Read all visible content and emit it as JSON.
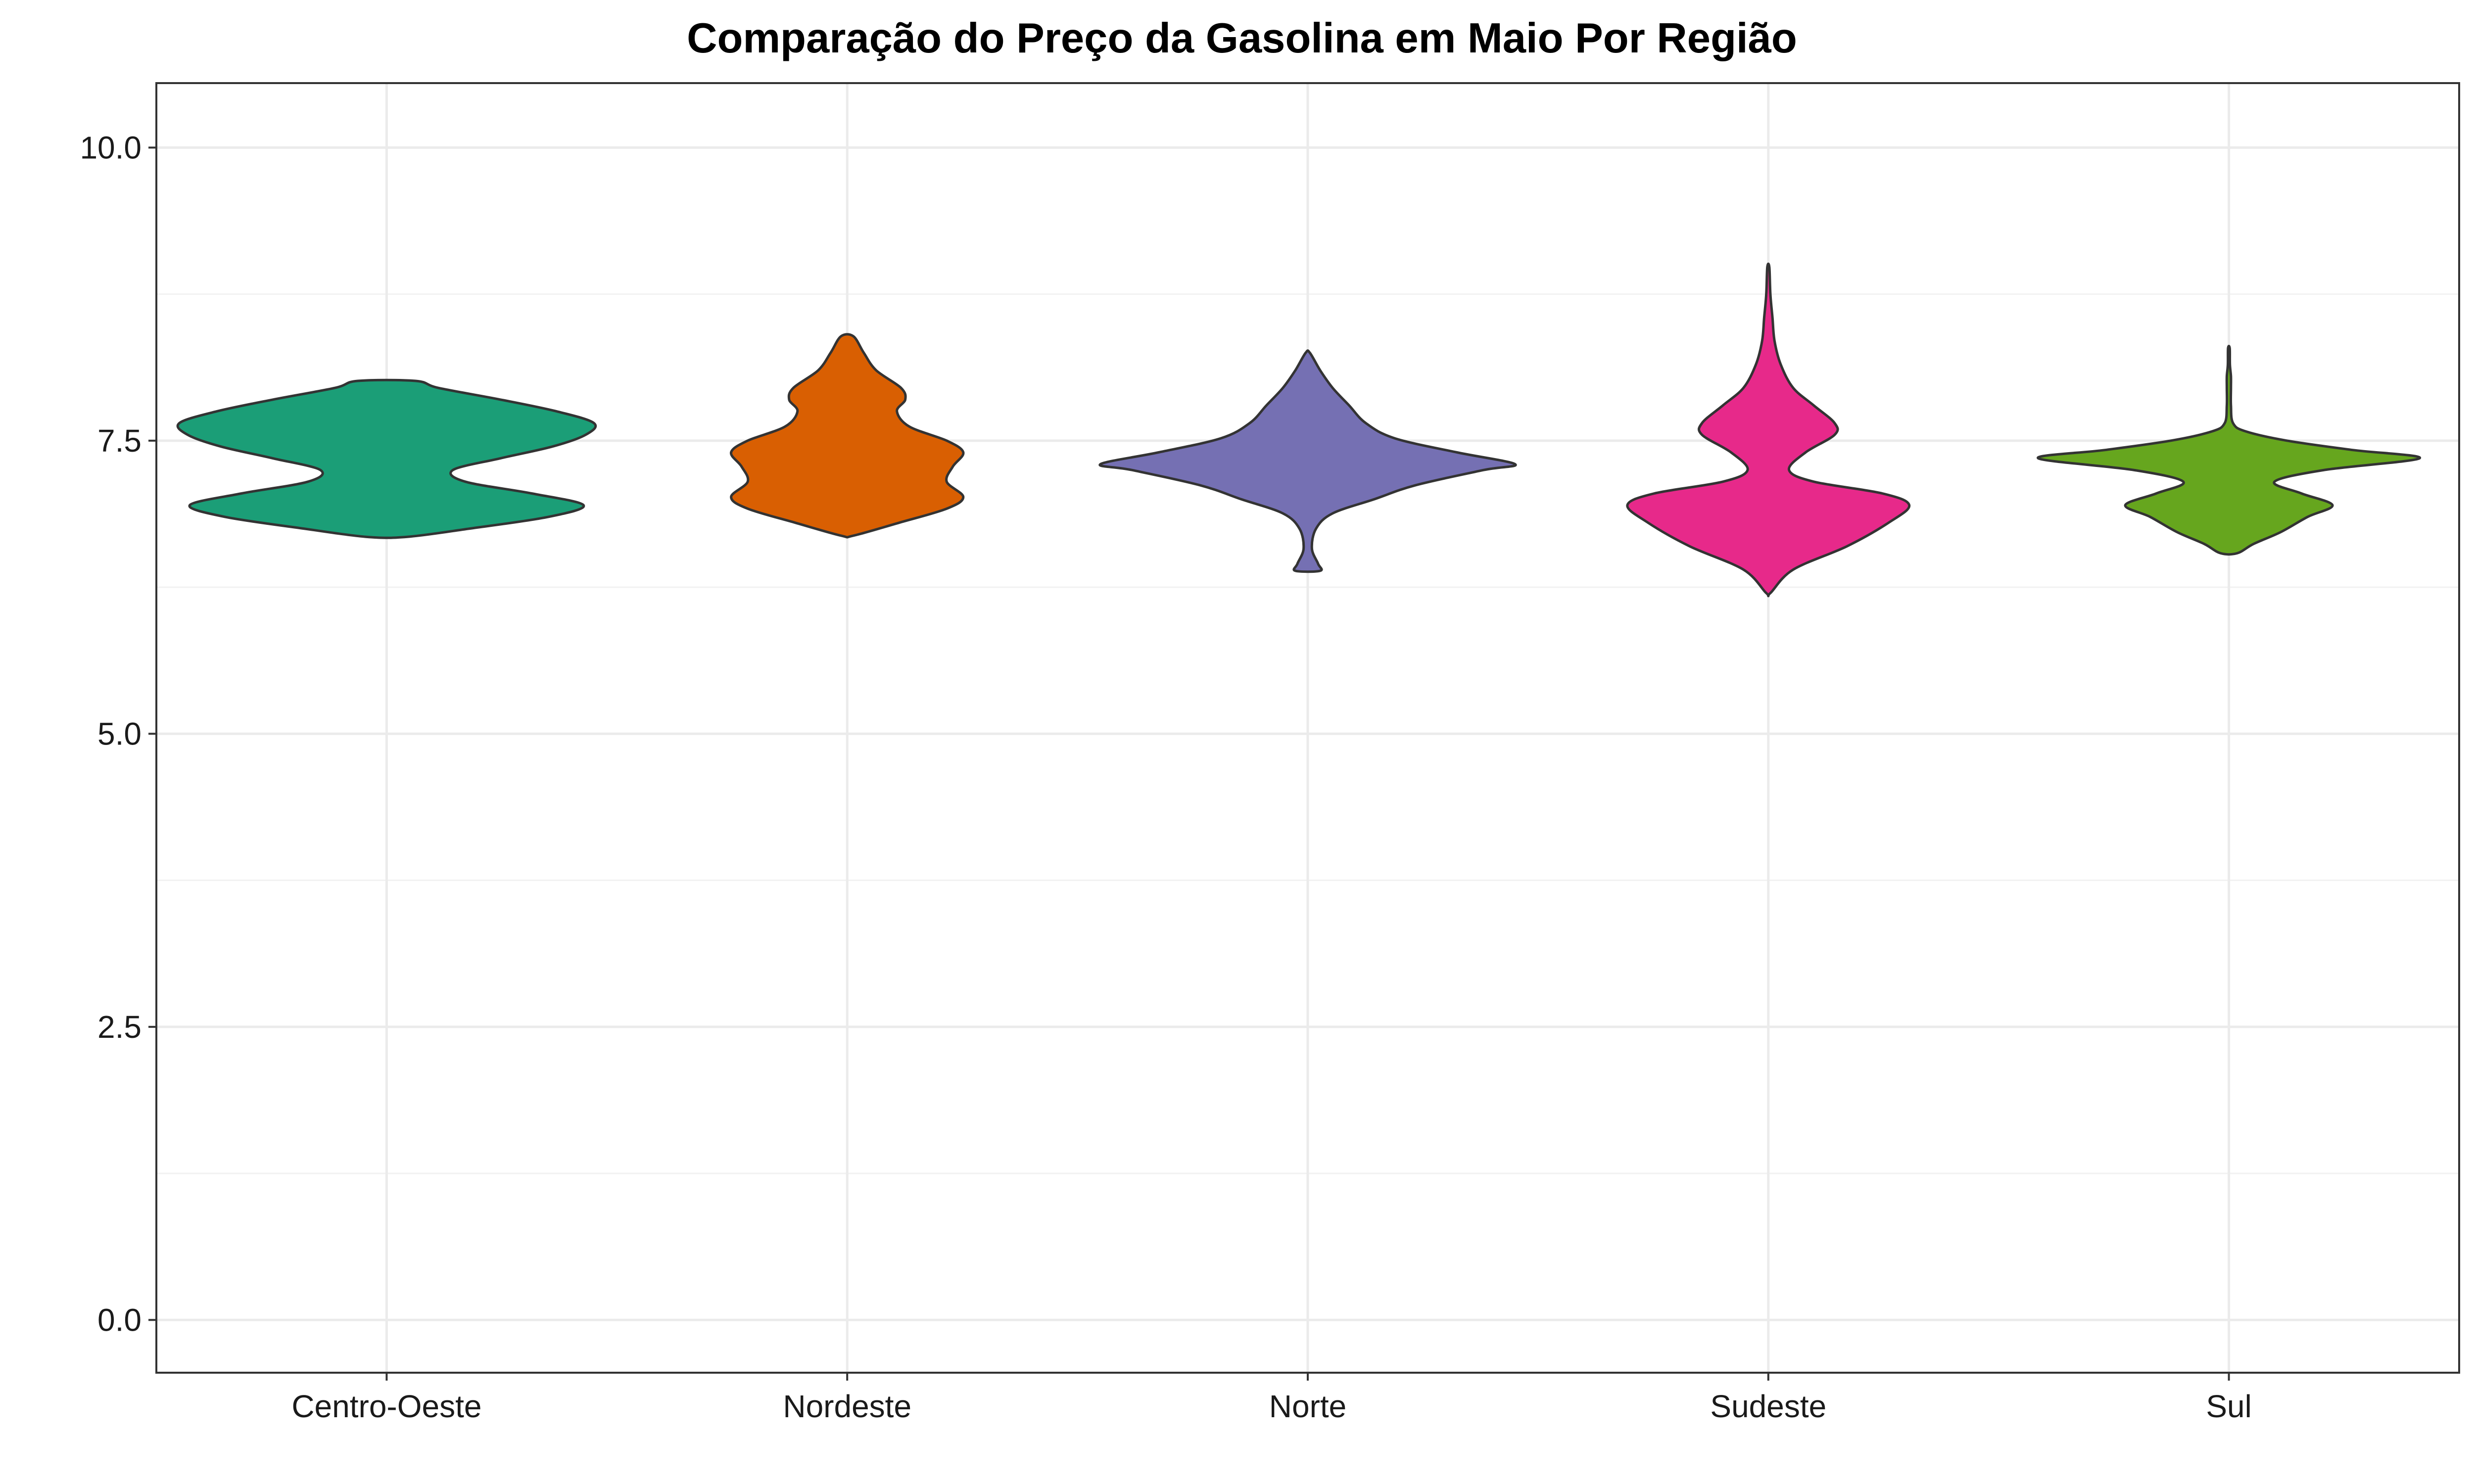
{
  "chart_data": {
    "type": "violin",
    "title": "Comparação do Preço da Gasolina em Maio Por Região",
    "xlabel": "",
    "ylabel": "",
    "ylim": [
      -0.45,
      10.55
    ],
    "yticks": [
      0.0,
      2.5,
      5.0,
      7.5,
      10.0
    ],
    "ytick_labels": [
      "0.0",
      "2.5",
      "5.0",
      "7.5",
      "10.0"
    ],
    "y_minor_ticks": [
      1.25,
      3.75,
      6.25,
      8.75
    ],
    "grid": true,
    "legend": "none",
    "categories": [
      "Centro-Oeste",
      "Nordeste",
      "Norte",
      "Sudeste",
      "Sul"
    ],
    "series": [
      {
        "category": "Centro-Oeste",
        "color": "#1B9E77",
        "ymin": 6.68,
        "ymax": 8.01,
        "profile": [
          [
            6.68,
            0.1
          ],
          [
            6.75,
            0.4
          ],
          [
            6.85,
            0.78
          ],
          [
            6.95,
            0.95
          ],
          [
            7.05,
            0.7
          ],
          [
            7.15,
            0.38
          ],
          [
            7.25,
            0.32
          ],
          [
            7.35,
            0.55
          ],
          [
            7.45,
            0.8
          ],
          [
            7.55,
            0.96
          ],
          [
            7.65,
            1.0
          ],
          [
            7.75,
            0.82
          ],
          [
            7.85,
            0.55
          ],
          [
            7.95,
            0.25
          ],
          [
            8.01,
            0.14
          ]
        ]
      },
      {
        "category": "Nordeste",
        "color": "#D95F02",
        "ymin": 6.69,
        "ymax": 8.39,
        "profile": [
          [
            6.69,
            0.03
          ],
          [
            6.8,
            0.25
          ],
          [
            6.92,
            0.48
          ],
          [
            7.02,
            0.56
          ],
          [
            7.15,
            0.48
          ],
          [
            7.28,
            0.51
          ],
          [
            7.4,
            0.56
          ],
          [
            7.5,
            0.48
          ],
          [
            7.62,
            0.3
          ],
          [
            7.75,
            0.24
          ],
          [
            7.85,
            0.28
          ],
          [
            7.95,
            0.26
          ],
          [
            8.1,
            0.14
          ],
          [
            8.25,
            0.08
          ],
          [
            8.39,
            0.03
          ]
        ]
      },
      {
        "category": "Norte",
        "color": "#7570B3",
        "ymin": 6.39,
        "ymax": 8.25,
        "profile": [
          [
            6.39,
            0.06
          ],
          [
            6.45,
            0.05
          ],
          [
            6.58,
            0.02
          ],
          [
            6.75,
            0.04
          ],
          [
            6.88,
            0.12
          ],
          [
            7.0,
            0.32
          ],
          [
            7.12,
            0.52
          ],
          [
            7.25,
            0.85
          ],
          [
            7.3,
            1.0
          ],
          [
            7.4,
            0.72
          ],
          [
            7.52,
            0.42
          ],
          [
            7.65,
            0.28
          ],
          [
            7.8,
            0.2
          ],
          [
            7.95,
            0.12
          ],
          [
            8.1,
            0.06
          ],
          [
            8.25,
            0.01
          ]
        ]
      },
      {
        "category": "Sudeste",
        "color": "#E7298A",
        "ymin": 6.2,
        "ymax": 8.98,
        "profile": [
          [
            6.2,
            0.01
          ],
          [
            6.4,
            0.12
          ],
          [
            6.6,
            0.38
          ],
          [
            6.8,
            0.58
          ],
          [
            6.95,
            0.68
          ],
          [
            7.05,
            0.55
          ],
          [
            7.15,
            0.22
          ],
          [
            7.25,
            0.1
          ],
          [
            7.4,
            0.18
          ],
          [
            7.55,
            0.32
          ],
          [
            7.65,
            0.32
          ],
          [
            7.8,
            0.22
          ],
          [
            7.95,
            0.12
          ],
          [
            8.15,
            0.06
          ],
          [
            8.35,
            0.03
          ],
          [
            8.55,
            0.02
          ],
          [
            8.75,
            0.01
          ],
          [
            8.98,
            0.005
          ]
        ]
      },
      {
        "category": "Sul",
        "color": "#66A61E",
        "ymin": 6.54,
        "ymax": 8.29,
        "profile": [
          [
            6.54,
            0.04
          ],
          [
            6.62,
            0.12
          ],
          [
            6.72,
            0.25
          ],
          [
            6.85,
            0.38
          ],
          [
            6.95,
            0.5
          ],
          [
            7.05,
            0.35
          ],
          [
            7.15,
            0.22
          ],
          [
            7.25,
            0.46
          ],
          [
            7.35,
            0.92
          ],
          [
            7.42,
            0.6
          ],
          [
            7.5,
            0.28
          ],
          [
            7.58,
            0.08
          ],
          [
            7.65,
            0.02
          ],
          [
            7.8,
            0.01
          ],
          [
            7.95,
            0.01
          ],
          [
            8.05,
            0.01
          ],
          [
            8.15,
            0.005
          ],
          [
            8.29,
            0.002
          ]
        ]
      }
    ]
  }
}
